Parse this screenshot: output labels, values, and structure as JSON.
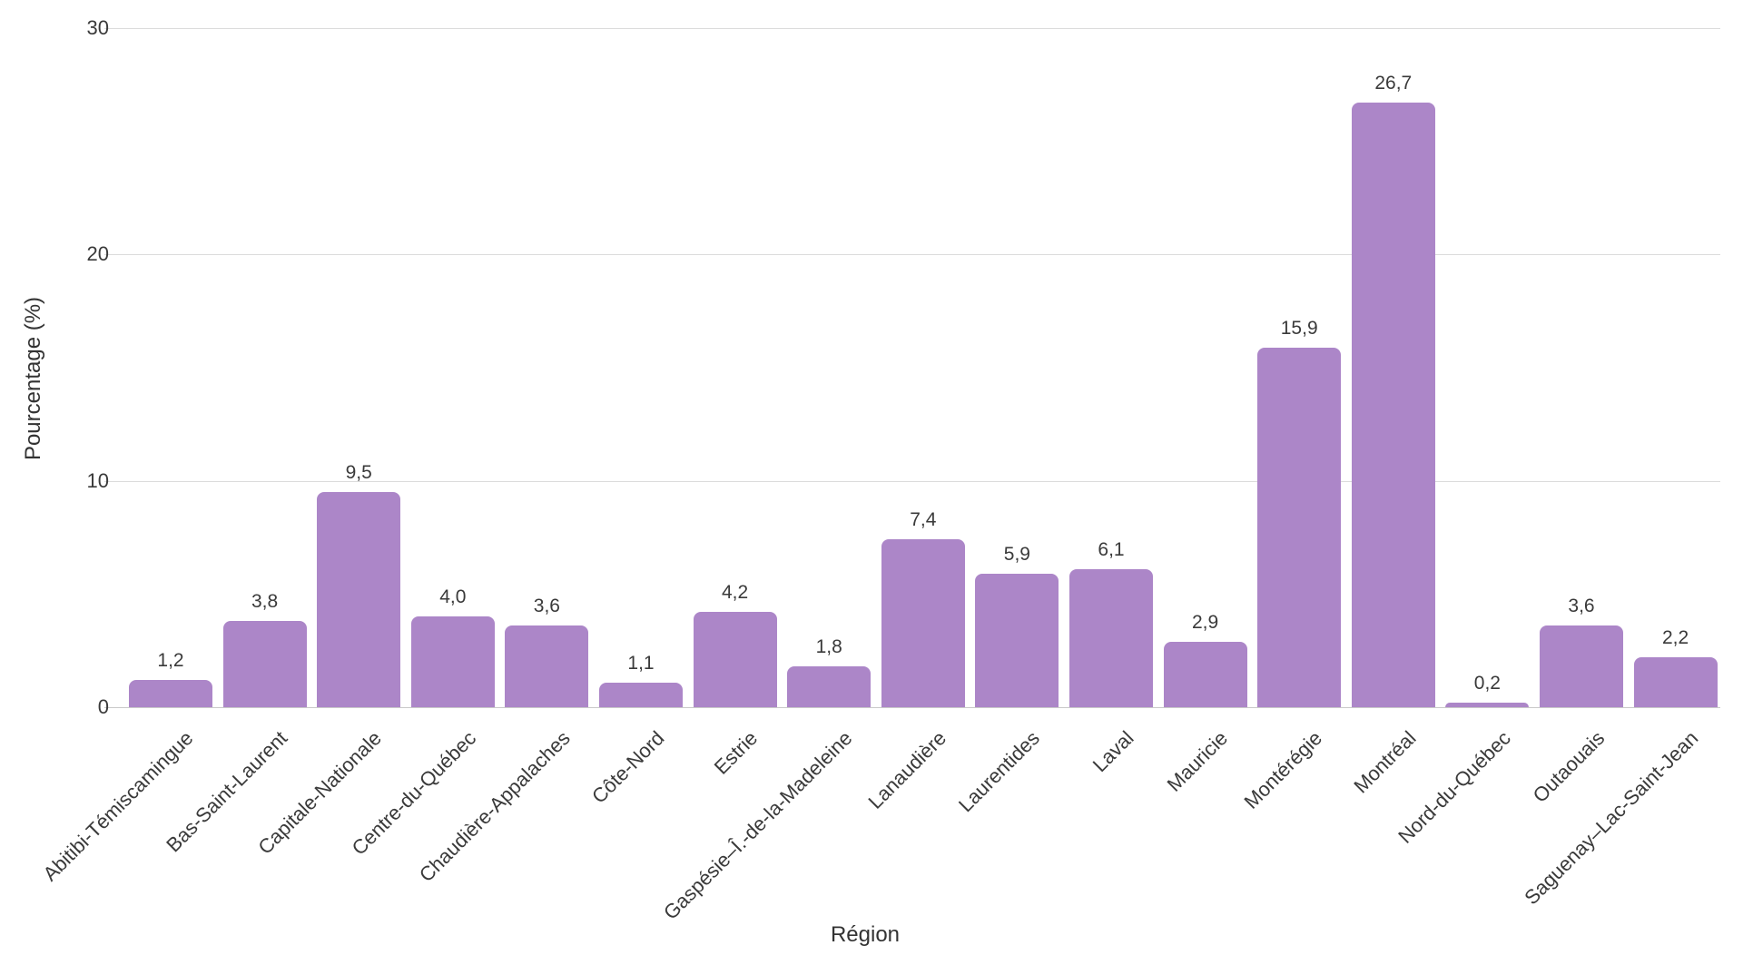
{
  "chart_data": {
    "type": "bar",
    "title": "",
    "xlabel": "Région",
    "ylabel": "Pourcentage (%)",
    "ylim": [
      0,
      30
    ],
    "yticks": [
      0,
      10,
      20,
      30
    ],
    "grid": true,
    "legend": false,
    "decimal_separator": ",",
    "bar_color": "#AC86C8",
    "gridline_color": "#DBDBDB",
    "axis_line_color": "#C9C9C9",
    "text_color": "#3A3A3A",
    "categories": [
      "Abitibi-Témiscamingue",
      "Bas-Saint-Laurent",
      "Capitale-Nationale",
      "Centre-du-Québec",
      "Chaudière-Appalaches",
      "Côte-Nord",
      "Estrie",
      "Gaspésie–Î.-de-la-Madeleine",
      "Lanaudière",
      "Laurentides",
      "Laval",
      "Mauricie",
      "Montérégie",
      "Montréal",
      "Nord-du-Québec",
      "Outaouais",
      "Saguenay–Lac-Saint-Jean"
    ],
    "values": [
      1.2,
      3.8,
      9.5,
      4.0,
      3.6,
      1.1,
      4.2,
      1.8,
      7.4,
      5.9,
      6.1,
      2.9,
      15.9,
      26.7,
      0.2,
      3.6,
      2.2
    ],
    "value_labels": [
      "1,2",
      "3,8",
      "9,5",
      "4,0",
      "3,6",
      "1,1",
      "4,2",
      "1,8",
      "7,4",
      "5,9",
      "6,1",
      "2,9",
      "15,9",
      "26,7",
      "0,2",
      "3,6",
      "2,2"
    ]
  }
}
